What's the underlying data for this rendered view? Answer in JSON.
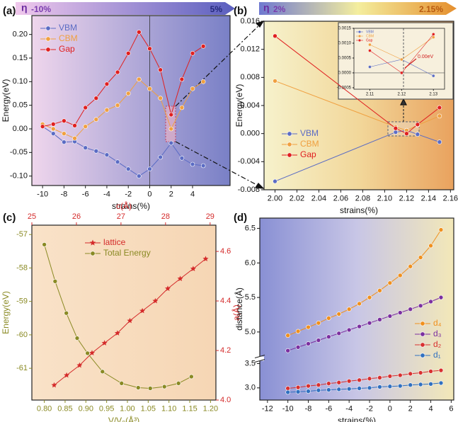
{
  "chart_data": [
    {
      "type": "line",
      "label": "(a)",
      "banner": {
        "symbol": "η",
        "start": "-10%",
        "end": "5%"
      },
      "xlabel": "strains(%)",
      "ylabel": "Energy(eV)",
      "x": [
        -10,
        -9,
        -8,
        -7,
        -6,
        -5,
        -4,
        -3,
        -2,
        -1,
        0,
        1,
        2,
        3,
        4,
        5
      ],
      "series": [
        {
          "name": "VBM",
          "color": "#5b6cc4",
          "values": [
            0.005,
            -0.01,
            -0.028,
            -0.027,
            -0.04,
            -0.047,
            -0.055,
            -0.07,
            -0.085,
            -0.1,
            -0.085,
            -0.06,
            -0.03,
            -0.062,
            -0.075,
            -0.078
          ]
        },
        {
          "name": "CBM",
          "color": "#f0a040",
          "values": [
            0.01,
            0.0,
            -0.01,
            -0.02,
            0.005,
            0.02,
            0.04,
            0.05,
            0.075,
            0.105,
            0.085,
            0.065,
            0.0,
            0.045,
            0.085,
            0.1
          ]
        },
        {
          "name": "Gap",
          "color": "#e02020",
          "values": [
            0.005,
            0.01,
            0.017,
            0.007,
            0.045,
            0.065,
            0.095,
            0.12,
            0.16,
            0.205,
            0.17,
            0.125,
            0.03,
            0.105,
            0.16,
            0.175
          ]
        }
      ],
      "xlim": [
        -11,
        7.5
      ],
      "ylim": [
        -0.12,
        0.24
      ],
      "xticks": [
        -10,
        -8,
        -6,
        -4,
        -2,
        0,
        2,
        4
      ],
      "yticks": [
        {
          "value": -0.1,
          "label": "-0.10"
        },
        -0.05,
        {
          "value": 0,
          "label": "0.00"
        },
        0.05,
        {
          "value": 0.1,
          "label": "0.10"
        },
        0.15,
        {
          "value": 0.2,
          "label": "0.20"
        }
      ],
      "legend": "upper left",
      "zero_line": "x"
    },
    {
      "type": "line",
      "label": "(b)",
      "banner": {
        "symbol": "η",
        "start": "2%",
        "end": "2.15%"
      },
      "xlabel": "strains(%)",
      "ylabel": "Energy(eV)",
      "x": [
        2.0,
        2.11,
        2.12,
        2.13,
        2.15
      ],
      "series": [
        {
          "name": "VBM",
          "color": "#5b6cc4",
          "values": [
            -0.0068,
            0.0002,
            0.00045,
            -0.0001,
            -0.0012
          ]
        },
        {
          "name": "CBM",
          "color": "#f0a040",
          "values": [
            0.0075,
            0.00095,
            0.00045,
            0.0012,
            0.0025
          ]
        },
        {
          "name": "Gap",
          "color": "#e02020",
          "values": [
            0.0139,
            0.00075,
            0,
            0.0013,
            0.0037
          ]
        }
      ],
      "xlim": [
        1.99,
        2.163
      ],
      "ylim": [
        -0.008,
        0.016
      ],
      "xticks": [
        {
          "value": 2.0,
          "label": "2.00"
        },
        2.02,
        2.04,
        2.06,
        2.08,
        {
          "value": 2.1,
          "label": "2.10"
        },
        2.12,
        2.14,
        2.16
      ],
      "yticks": [
        -0.008,
        -0.004,
        {
          "value": 0,
          "label": "0.000"
        },
        0.004,
        0.008,
        0.012,
        0.016
      ],
      "legend": "center left"
    },
    {
      "type": "line",
      "annotation": "0.00eV",
      "x": [
        2.11,
        2.12,
        2.13
      ],
      "series": [
        {
          "name": "VBM",
          "color": "#5b6cc4",
          "values": [
            0.0002,
            0.00045,
            -0.0001
          ]
        },
        {
          "name": "CBM",
          "color": "#f0a040",
          "values": [
            0.00095,
            0.00045,
            0.0012
          ]
        },
        {
          "name": "Gap",
          "color": "#e02020",
          "values": [
            0.00075,
            0,
            0.0013
          ]
        }
      ],
      "xlim": [
        2.105,
        2.1335
      ],
      "ylim": [
        -0.00055,
        0.0015
      ],
      "xticks": [
        2.11,
        2.12,
        2.13
      ],
      "yticks": [
        -0.0005,
        {
          "value": 0,
          "label": "0.0000"
        },
        0.0005,
        {
          "value": 0.001,
          "label": "0.0010"
        },
        0.0015
      ],
      "legend": "upper left",
      "zero_line": "y"
    },
    {
      "type": "line",
      "label": "(c)",
      "xlabel": "V/V₀(Å³)",
      "x2label": "c(Å)",
      "ylabel": "Energy(eV)",
      "y2label": "a(Å)",
      "series": [
        {
          "name": "lattice",
          "color": "#d42a2a",
          "axis": "y2",
          "xaxis": "x2",
          "marker": "star",
          "x": [
            25.5,
            25.78,
            26.07,
            26.35,
            26.63,
            26.92,
            27.2,
            27.48,
            27.77,
            28.05,
            28.33,
            28.62,
            28.9
          ],
          "values": [
            4.06,
            4.1,
            4.14,
            4.19,
            4.23,
            4.27,
            4.32,
            4.36,
            4.4,
            4.45,
            4.49,
            4.53,
            4.57
          ]
        },
        {
          "name": "Total Energy",
          "color": "#8a8a24",
          "marker": "circle",
          "x": [
            0.8,
            0.826,
            0.853,
            0.879,
            0.904,
            0.94,
            0.986,
            1.026,
            1.055,
            1.089,
            1.123,
            1.154
          ],
          "values": [
            -57.3,
            -58.4,
            -59.35,
            -60.1,
            -60.55,
            -61.1,
            -61.45,
            -61.58,
            -61.6,
            -61.55,
            -61.45,
            -61.25
          ]
        }
      ],
      "xlim": [
        0.77,
        1.213
      ],
      "x2lim": [
        25,
        29.13
      ],
      "ylim": [
        -61.95,
        -56.72
      ],
      "y2lim": [
        4,
        4.706
      ],
      "xticks": [
        {
          "value": 0.8,
          "label": "0.80"
        },
        0.85,
        {
          "value": 0.9,
          "label": "0.90"
        },
        0.95,
        {
          "value": 1,
          "label": "1.00"
        },
        1.05,
        {
          "value": 1.1,
          "label": "1.10"
        },
        1.15,
        {
          "value": 1.2,
          "label": "1.20"
        }
      ],
      "x2ticks": [
        25,
        26,
        27,
        28,
        29
      ],
      "yticks": [
        -57,
        -58,
        -59,
        -60,
        -61
      ],
      "y2ticks": [
        {
          "value": 4,
          "label": "4.0"
        },
        4.2,
        4.4,
        4.6
      ],
      "legend": "upper center"
    },
    {
      "type": "line",
      "label": "(d)",
      "xlabel": "strains(%)",
      "ylabel": "distance(Å)",
      "x": [
        -10,
        -9,
        -8,
        -7,
        -6,
        -5,
        -4,
        -3,
        -2,
        -1,
        0,
        1,
        2,
        3,
        4,
        5
      ],
      "series": [
        {
          "name": "d₄",
          "color": "#f0901e",
          "values": [
            4.95,
            5.01,
            5.07,
            5.13,
            5.2,
            5.26,
            5.33,
            5.41,
            5.5,
            5.6,
            5.71,
            5.82,
            5.95,
            6.08,
            6.25,
            6.48
          ]
        },
        {
          "name": "d₃",
          "color": "#7b2fa0",
          "values": [
            4.73,
            4.78,
            4.83,
            4.88,
            4.93,
            4.98,
            5.03,
            5.08,
            5.13,
            5.18,
            5.23,
            5.28,
            5.33,
            5.38,
            5.44,
            5.5
          ]
        },
        {
          "name": "d₂",
          "color": "#d83030",
          "values": [
            2.99,
            3.01,
            3.04,
            3.06,
            3.09,
            3.11,
            3.14,
            3.16,
            3.19,
            3.21,
            3.24,
            3.26,
            3.29,
            3.31,
            3.34,
            3.36
          ]
        },
        {
          "name": "d₁",
          "color": "#3070c0",
          "values": [
            2.91,
            2.92,
            2.93,
            2.95,
            2.96,
            2.97,
            2.98,
            2.99,
            3.0,
            3.02,
            3.03,
            3.04,
            3.06,
            3.07,
            3.08,
            3.1
          ]
        }
      ],
      "xlim": [
        -12.75,
        6.25
      ],
      "ylim": [
        2.75,
        6.65
      ],
      "y_break": [
        3.55,
        4.65
      ],
      "xticks": [
        -12,
        -10,
        -8,
        -6,
        -4,
        -2,
        0,
        2,
        4,
        6
      ],
      "yticks": [
        {
          "value": 3,
          "label": "3.0"
        },
        3.5,
        {
          "value": 5,
          "label": "5.0"
        },
        5.5,
        {
          "value": 6,
          "label": "6.0"
        },
        6.5
      ],
      "legend": "lower right"
    }
  ]
}
